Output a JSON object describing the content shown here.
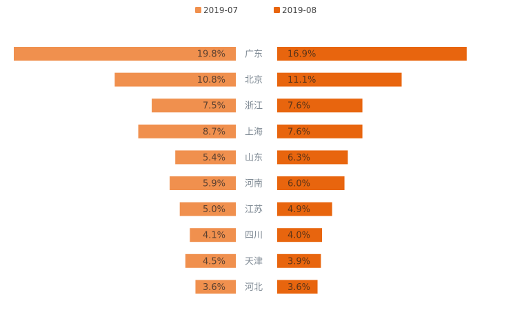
{
  "chart_data": {
    "type": "bar",
    "layout": "butterfly",
    "categories": [
      "广东",
      "北京",
      "浙江",
      "上海",
      "山东",
      "河南",
      "江苏",
      "四川",
      "天津",
      "河北"
    ],
    "series": [
      {
        "name": "2019-07",
        "color": "#f0904e",
        "values": [
          19.8,
          10.8,
          7.5,
          8.7,
          5.4,
          5.9,
          5.0,
          4.1,
          4.5,
          3.6
        ],
        "labels": [
          "19.8%",
          "10.8%",
          "7.5%",
          "8.7%",
          "5.4%",
          "5.9%",
          "5.0%",
          "4.1%",
          "4.5%",
          "3.6%"
        ]
      },
      {
        "name": "2019-08",
        "color": "#e8650e",
        "values": [
          16.9,
          11.1,
          7.6,
          7.6,
          6.3,
          6.0,
          4.9,
          4.0,
          3.9,
          3.6
        ],
        "labels": [
          "16.9%",
          "11.1%",
          "7.6%",
          "7.6%",
          "6.3%",
          "6.0%",
          "4.9%",
          "4.0%",
          "3.9%",
          "3.6%"
        ]
      }
    ],
    "legend_position": "top-center",
    "grid": false,
    "axes_visible": false
  }
}
